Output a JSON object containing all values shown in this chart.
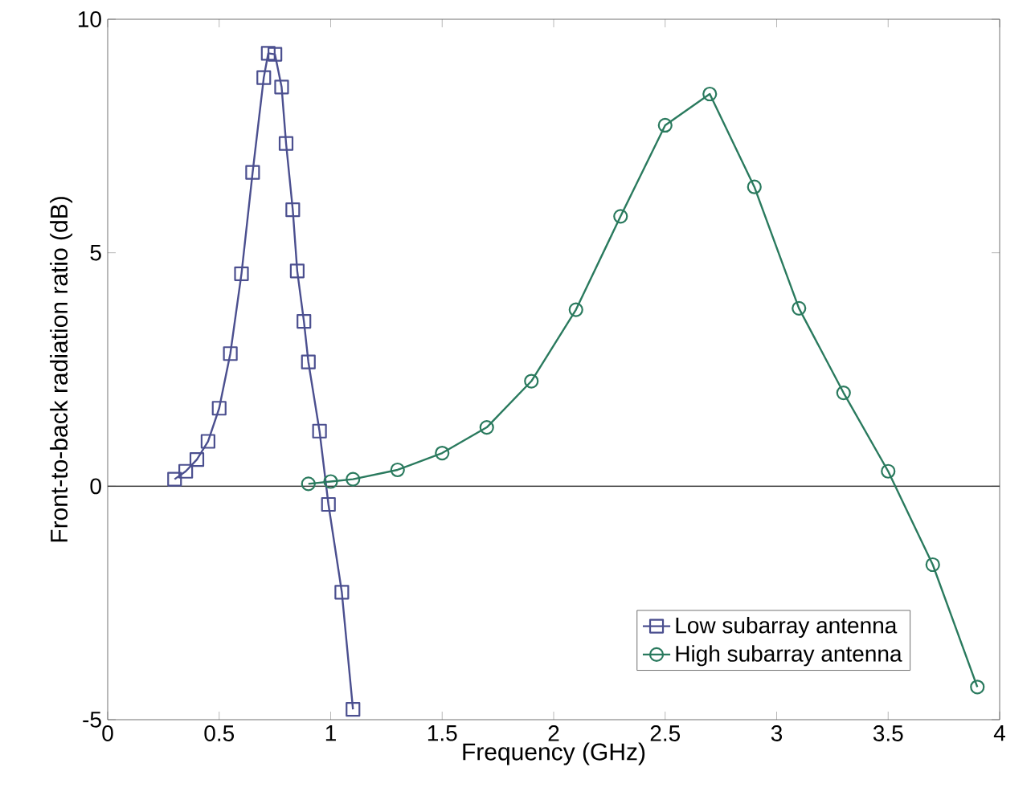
{
  "chart_data": {
    "type": "line",
    "xlabel": "Frequency (GHz)",
    "ylabel": "Front-to-back radiation ratio (dB)",
    "xlim": [
      0,
      4
    ],
    "ylim": [
      -5,
      10
    ],
    "xticks": [
      0,
      0.5,
      1,
      1.5,
      2,
      2.5,
      3,
      3.5,
      4
    ],
    "yticks": [
      -5,
      0,
      5,
      10
    ],
    "legend": "bottom right",
    "grid": false,
    "line_style": "solid",
    "ref_lines": [
      {
        "axis": "y",
        "value": 0,
        "color": "#333333"
      }
    ],
    "series": [
      {
        "name": "Low subarray antenna",
        "color": "#4b4f8f",
        "marker": "square",
        "x": [
          0.3,
          0.35,
          0.4,
          0.45,
          0.5,
          0.55,
          0.6,
          0.65,
          0.7,
          0.72,
          0.75,
          0.78,
          0.8,
          0.83,
          0.85,
          0.88,
          0.9,
          0.95,
          0.99,
          1.05,
          1.1
        ],
        "values": [
          0.15,
          0.32,
          0.57,
          0.96,
          1.67,
          2.84,
          4.55,
          6.72,
          8.75,
          9.27,
          9.25,
          8.55,
          7.34,
          5.92,
          4.61,
          3.53,
          2.66,
          1.18,
          -0.39,
          -2.27,
          -4.78
        ]
      },
      {
        "name": "High subarray antenna",
        "color": "#2a7a5e",
        "marker": "circle",
        "x": [
          0.9,
          1.0,
          1.1,
          1.3,
          1.5,
          1.7,
          1.9,
          2.1,
          2.3,
          2.5,
          2.7,
          2.9,
          3.1,
          3.3,
          3.5,
          3.7,
          3.9
        ],
        "values": [
          0.05,
          0.1,
          0.15,
          0.35,
          0.71,
          1.26,
          2.25,
          3.78,
          5.78,
          7.73,
          8.4,
          6.41,
          3.81,
          2.0,
          0.32,
          -1.68,
          -4.3
        ]
      }
    ]
  }
}
